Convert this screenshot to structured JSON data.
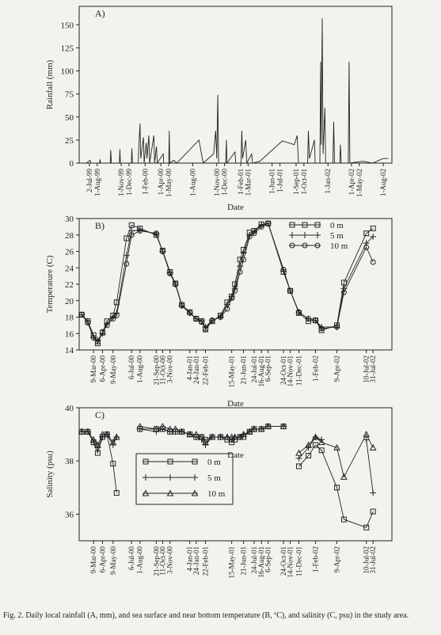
{
  "chart_data": [
    {
      "type": "line",
      "panel": "A)",
      "ylabel": "Rainfall (mm)",
      "xlabel": "Date",
      "color": "#222",
      "xlim": [
        "1999-05-24",
        "2002-09-03"
      ],
      "ylim": [
        0,
        170
      ],
      "yticks": [
        0,
        25,
        50,
        75,
        100,
        125,
        150
      ],
      "xticks": [
        {
          "value": "1999-07-02",
          "label": "2-Jul-99"
        },
        {
          "value": "1999-08-01",
          "label": "1-Aug-99"
        },
        {
          "value": "1999-11-01",
          "label": "1-Nov-99"
        },
        {
          "value": "1999-12-01",
          "label": "1-Dec-99"
        },
        {
          "value": "2000-02-01",
          "label": "1-Feb-00"
        },
        {
          "value": "2000-04-01",
          "label": "1-Apr-00"
        },
        {
          "value": "2000-05-01",
          "label": "1-May-00"
        },
        {
          "value": "2000-08-01",
          "label": "1-Aug-00"
        },
        {
          "value": "2000-11-01",
          "label": "1-Nov-00"
        },
        {
          "value": "2000-12-01",
          "label": "1-Dec-00"
        },
        {
          "value": "2001-02-01",
          "label": "1-Feb-01"
        },
        {
          "value": "2001-03-01",
          "label": "1-Mar-01"
        },
        {
          "value": "2001-06-01",
          "label": "1-Jun-01"
        },
        {
          "value": "2001-07-01",
          "label": "1-Jul-01"
        },
        {
          "value": "2001-09-01",
          "label": "1-Sep-01"
        },
        {
          "value": "2001-10-01",
          "label": "1-Oct-01"
        },
        {
          "value": "2002-01-01",
          "label": "1-Jan-02"
        },
        {
          "value": "2002-04-01",
          "label": "1-Apr-02"
        },
        {
          "value": "2002-05-01",
          "label": "1-May-02"
        },
        {
          "value": "2002-08-01",
          "label": "1-Aug-02"
        }
      ],
      "x": [
        "1999-06-20",
        "1999-07-05",
        "1999-07-08",
        "1999-08-10",
        "1999-08-12",
        "1999-08-14",
        "1999-09-20",
        "1999-09-22",
        "1999-09-24",
        "1999-10-25",
        "1999-10-27",
        "1999-10-29",
        "1999-12-10",
        "1999-12-12",
        "1999-12-14",
        "2000-01-05",
        "2000-01-08",
        "2000-01-12",
        "2000-01-15",
        "2000-01-25",
        "2000-01-28",
        "2000-02-05",
        "2000-02-08",
        "2000-02-15",
        "2000-02-18",
        "2000-03-05",
        "2000-03-08",
        "2000-03-15",
        "2000-03-18",
        "2000-04-10",
        "2000-04-12",
        "2000-05-01",
        "2000-05-03",
        "2000-05-05",
        "2000-05-20",
        "2000-06-01",
        "2000-08-25",
        "2000-09-10",
        "2000-10-20",
        "2000-10-28",
        "2000-11-01",
        "2000-11-05",
        "2000-11-08",
        "2000-12-05",
        "2000-12-08",
        "2000-12-10",
        "2001-01-10",
        "2001-01-13",
        "2001-02-02",
        "2001-02-05",
        "2001-02-08",
        "2001-02-20",
        "2001-02-24",
        "2001-03-15",
        "2001-03-18",
        "2001-04-15",
        "2001-07-10",
        "2001-08-25",
        "2001-09-05",
        "2001-09-10",
        "2001-10-15",
        "2001-10-18",
        "2001-10-22",
        "2001-11-10",
        "2001-11-13",
        "2001-12-01",
        "2001-12-04",
        "2001-12-06",
        "2001-12-10",
        "2001-12-13",
        "2001-12-20",
        "2001-12-23",
        "2002-01-20",
        "2002-01-23",
        "2002-01-26",
        "2002-02-15",
        "2002-02-18",
        "2002-02-21",
        "2002-03-20",
        "2002-03-23",
        "2002-03-26",
        "2002-05-15",
        "2002-06-20",
        "2002-08-01",
        "2002-08-20"
      ],
      "values": [
        0,
        3,
        0,
        0,
        4,
        0,
        0,
        14,
        0,
        0,
        15,
        0,
        0,
        16,
        0,
        0,
        20,
        43,
        5,
        28,
        0,
        22,
        5,
        30,
        0,
        30,
        0,
        18,
        0,
        10,
        0,
        0,
        35,
        0,
        3,
        0,
        25,
        0,
        10,
        35,
        5,
        74,
        0,
        0,
        25,
        0,
        12,
        0,
        0,
        35,
        5,
        25,
        0,
        10,
        0,
        2,
        24,
        20,
        30,
        0,
        0,
        35,
        5,
        25,
        0,
        0,
        110,
        20,
        157,
        10,
        60,
        0,
        0,
        45,
        0,
        0,
        20,
        0,
        0,
        110,
        0,
        2,
        0,
        5,
        5
      ]
    },
    {
      "type": "line",
      "panel": "B)",
      "ylabel": "Temperature (C)",
      "xlabel": "Date",
      "legend": "upper right",
      "xlim": [
        "2000-01-24",
        "2002-09-28"
      ],
      "ylim": [
        14,
        30
      ],
      "yticks": [
        14,
        16,
        18,
        20,
        22,
        24,
        26,
        28,
        30
      ],
      "xticks": [
        {
          "value": "2000-03-09",
          "label": "9-Mar-00"
        },
        {
          "value": "2000-04-06",
          "label": "6-Apr-00"
        },
        {
          "value": "2000-05-09",
          "label": "9-May-00"
        },
        {
          "value": "2000-07-06",
          "label": "6-Jul-00"
        },
        {
          "value": "2000-08-01",
          "label": "1-Aug-00"
        },
        {
          "value": "2000-09-21",
          "label": "21-Sep-00"
        },
        {
          "value": "2000-10-11",
          "label": "11-Oct-00"
        },
        {
          "value": "2000-11-03",
          "label": "3-Nov-00"
        },
        {
          "value": "2001-01-04",
          "label": "4-Jan-01"
        },
        {
          "value": "2001-01-24",
          "label": "24-Jan-01"
        },
        {
          "value": "2001-02-22",
          "label": "22-Feb-01"
        },
        {
          "value": "2001-05-15",
          "label": "15-May-01"
        },
        {
          "value": "2001-06-21",
          "label": "21-Jun-01"
        },
        {
          "value": "2001-07-24",
          "label": "24-Jul-01"
        },
        {
          "value": "2001-08-16",
          "label": "16-Aug-01"
        },
        {
          "value": "2001-09-06",
          "label": "6-Sep-01"
        },
        {
          "value": "2001-10-24",
          "label": "24-Oct-01"
        },
        {
          "value": "2001-11-14",
          "label": "14-Nov-01"
        },
        {
          "value": "2001-12-11",
          "label": "11-Dec-01"
        },
        {
          "value": "2002-02-01",
          "label": "1-Feb-02"
        },
        {
          "value": "2002-04-09",
          "label": "9-Apr-02"
        },
        {
          "value": "2002-07-10",
          "label": "10-Jul-02"
        },
        {
          "value": "2002-07-31",
          "label": "31-Jul-02"
        }
      ],
      "x": [
        "2000-02-01",
        "2000-02-20",
        "2000-03-09",
        "2000-03-22",
        "2000-04-06",
        "2000-04-20",
        "2000-05-09",
        "2000-05-20",
        "2000-06-20",
        "2000-07-06",
        "2000-08-01",
        "2000-09-21",
        "2000-10-11",
        "2000-11-03",
        "2000-11-20",
        "2000-12-10",
        "2001-01-04",
        "2001-01-24",
        "2001-02-10",
        "2001-02-22",
        "2001-03-15",
        "2001-04-10",
        "2001-05-01",
        "2001-05-15",
        "2001-05-25",
        "2001-06-10",
        "2001-06-21",
        "2001-07-10",
        "2001-07-24",
        "2001-08-16",
        "2001-09-06",
        "2001-10-24",
        "2001-11-14",
        "2001-12-11",
        "2002-01-10",
        "2002-02-01",
        "2002-02-20",
        "2002-04-09",
        "2002-05-01",
        "2002-07-10",
        "2002-07-31"
      ],
      "series": [
        {
          "name": "0 m",
          "color": "#222",
          "marker": "square",
          "values": [
            18.3,
            17.5,
            15.8,
            14.8,
            16.1,
            17.5,
            18.2,
            19.8,
            27.6,
            29.2,
            28.8,
            28.0,
            26.1,
            23.5,
            22.1,
            19.5,
            18.6,
            17.8,
            17.5,
            16.5,
            17.5,
            18.2,
            19.8,
            20.5,
            22.0,
            25.0,
            26.2,
            28.3,
            28.5,
            29.3,
            29.4,
            23.5,
            21.2,
            18.5,
            17.5,
            17.6,
            16.4,
            17.0,
            22.2,
            28.2,
            28.8
          ]
        },
        {
          "name": "5 m",
          "color": "#222",
          "marker": "plus",
          "values": [
            18.3,
            17.5,
            15.5,
            15.2,
            16.0,
            17.2,
            18.0,
            18.5,
            25.5,
            28.5,
            28.6,
            28.1,
            26.0,
            23.4,
            22.0,
            19.4,
            18.5,
            17.8,
            17.5,
            16.8,
            17.6,
            18.0,
            19.5,
            20.5,
            21.5,
            24.2,
            25.8,
            28.0,
            28.4,
            29.2,
            29.4,
            23.6,
            21.2,
            18.6,
            17.8,
            17.6,
            16.8,
            16.8,
            21.5,
            27.0,
            27.8
          ]
        },
        {
          "name": "10 m",
          "color": "#222",
          "marker": "circle",
          "values": [
            18.3,
            17.3,
            15.5,
            15.0,
            16.2,
            17.0,
            17.8,
            18.2,
            24.5,
            28.0,
            28.5,
            28.2,
            26.0,
            23.3,
            22.0,
            19.4,
            18.5,
            17.8,
            17.4,
            16.6,
            17.6,
            18.0,
            19.0,
            20.3,
            21.2,
            23.5,
            25.0,
            27.8,
            28.2,
            29.0,
            29.4,
            23.8,
            21.2,
            18.6,
            17.8,
            17.6,
            16.6,
            16.8,
            21.0,
            26.5,
            24.7
          ]
        }
      ]
    },
    {
      "type": "line",
      "panel": "C)",
      "ylabel": "Salinity (psu)",
      "xlabel": "Date",
      "legend": "center left",
      "xlim": [
        "2000-01-24",
        "2002-09-28"
      ],
      "ylim": [
        35,
        40
      ],
      "yticks": [
        36,
        38,
        40
      ],
      "xticks": [
        {
          "value": "2000-03-09",
          "label": "9-Mar-00"
        },
        {
          "value": "2000-04-06",
          "label": "6-Apr-00"
        },
        {
          "value": "2000-05-09",
          "label": "9-May-00"
        },
        {
          "value": "2000-07-06",
          "label": "6-Jul-00"
        },
        {
          "value": "2000-08-01",
          "label": "1-Aug-00"
        },
        {
          "value": "2000-09-21",
          "label": "21-Sep-00"
        },
        {
          "value": "2000-10-11",
          "label": "11-Oct-00"
        },
        {
          "value": "2000-11-03",
          "label": "3-Nov-00"
        },
        {
          "value": "2001-01-04",
          "label": "4-Jan-01"
        },
        {
          "value": "2001-01-24",
          "label": "24-Jan-01"
        },
        {
          "value": "2001-02-22",
          "label": "22-Feb-01"
        },
        {
          "value": "2001-05-15",
          "label": "15-May-01"
        },
        {
          "value": "2001-06-21",
          "label": "21-Jun-01"
        },
        {
          "value": "2001-07-24",
          "label": "24-Jul-01"
        },
        {
          "value": "2001-08-16",
          "label": "16-Aug-01"
        },
        {
          "value": "2001-09-06",
          "label": "6-Sep-01"
        },
        {
          "value": "2001-10-24",
          "label": "24-Oct-01"
        },
        {
          "value": "2001-11-14",
          "label": "14-Nov-01"
        },
        {
          "value": "2001-12-11",
          "label": "11-Dec-01"
        },
        {
          "value": "2002-02-01",
          "label": "1-Feb-02"
        },
        {
          "value": "2002-04-09",
          "label": "9-Apr-02"
        },
        {
          "value": "2002-07-10",
          "label": "10-Jul-02"
        },
        {
          "value": "2002-07-31",
          "label": "31-Jul-02"
        }
      ],
      "x": [
        "2000-02-01",
        "2000-02-20",
        "2000-03-09",
        "2000-03-22",
        "2000-04-06",
        "2000-04-20",
        "2000-05-09",
        "2000-05-20",
        "2000-06-20",
        "2000-07-06",
        "2000-08-01",
        "2000-09-21",
        "2000-10-11",
        "2000-11-03",
        "2000-11-20",
        "2000-12-10",
        "2001-01-04",
        "2001-01-24",
        "2001-02-10",
        "2001-02-22",
        "2001-03-15",
        "2001-04-10",
        "2001-05-01",
        "2001-05-15",
        "2001-05-25",
        "2001-06-10",
        "2001-06-21",
        "2001-07-10",
        "2001-07-24",
        "2001-08-16",
        "2001-09-06",
        "2001-10-24",
        "2001-11-14",
        "2001-12-11",
        "2002-01-10",
        "2002-02-01",
        "2002-02-20",
        "2002-04-09",
        "2002-05-01",
        "2002-07-10",
        "2002-07-31"
      ],
      "series": [
        {
          "name": "0 m",
          "color": "#222",
          "marker": "square",
          "values": [
            39.1,
            39.1,
            38.7,
            38.3,
            38.9,
            39.0,
            37.9,
            36.8,
            null,
            null,
            39.2,
            39.2,
            39.2,
            39.1,
            39.1,
            39.1,
            39.0,
            38.9,
            38.9,
            38.8,
            38.9,
            38.9,
            38.8,
            38.7,
            38.8,
            38.9,
            38.9,
            39.1,
            39.2,
            39.2,
            39.3,
            39.3,
            null,
            37.8,
            38.2,
            38.6,
            38.4,
            37.0,
            35.8,
            35.5,
            36.1
          ]
        },
        {
          "name": "5 m",
          "color": "#222",
          "marker": "plus",
          "values": [
            39.1,
            39.1,
            38.7,
            38.5,
            38.9,
            39.0,
            38.6,
            38.9,
            null,
            null,
            39.2,
            39.1,
            39.2,
            39.1,
            39.1,
            39.1,
            39.0,
            38.9,
            38.8,
            38.6,
            38.9,
            38.9,
            38.9,
            38.8,
            38.9,
            38.9,
            39.0,
            39.1,
            39.2,
            39.2,
            39.3,
            39.3,
            null,
            38.1,
            38.5,
            38.9,
            38.8,
            null,
            null,
            38.8,
            36.8
          ]
        },
        {
          "name": "10 m",
          "color": "#222",
          "marker": "triangle",
          "values": [
            39.1,
            39.1,
            38.8,
            38.6,
            39.0,
            39.0,
            38.7,
            38.9,
            null,
            null,
            39.3,
            39.2,
            39.3,
            39.2,
            39.2,
            39.1,
            39.0,
            39.0,
            38.9,
            38.7,
            38.9,
            38.9,
            38.9,
            38.9,
            38.9,
            38.9,
            39.0,
            39.1,
            39.2,
            39.2,
            39.3,
            39.3,
            null,
            38.3,
            38.6,
            38.9,
            38.7,
            38.5,
            37.4,
            39.0,
            38.5
          ]
        }
      ]
    }
  ],
  "caption": "Fig. 2. Daily local rainfall (A, mm), and sea surface and near bottom temperature (B, ºC), and salinity (C, psu) in the study area."
}
